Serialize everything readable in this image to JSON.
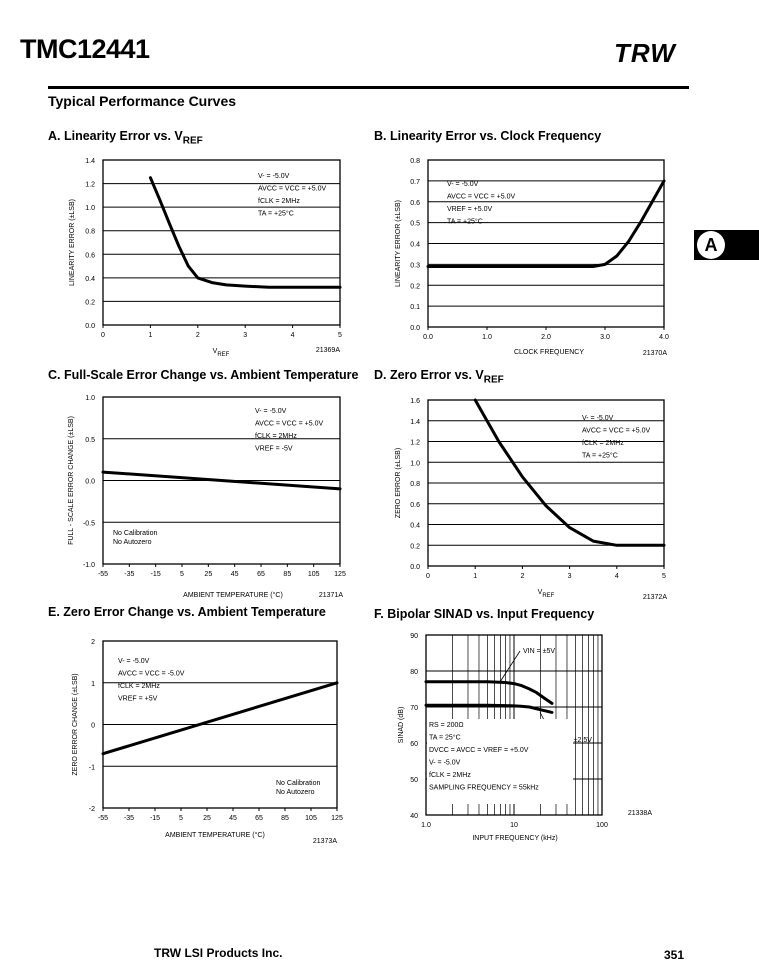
{
  "header": {
    "part_number": "TMC12441",
    "logo": "TRW",
    "section_title": "Typical Performance Curves",
    "tab_letter": "A"
  },
  "footer": {
    "company": "TRW LSI Products Inc.",
    "page_number": "351"
  },
  "chart_titles": [
    "A. Linearity Error vs. V",
    "B. Linearity Error vs. Clock Frequency",
    "C. Full-Scale Error Change vs. Ambient Temperature",
    "D. Zero Error vs. V",
    "E. Zero Error Change vs. Ambient Temperature",
    "F. Bipolar SINAD vs. Input Frequency"
  ],
  "chart_title_subscripts": [
    "REF",
    "",
    "",
    "REF",
    "",
    ""
  ],
  "chart_data": [
    {
      "type": "line",
      "xlim": [
        0,
        5
      ],
      "ylim": [
        0,
        1.4
      ],
      "xticks": [
        "0",
        "1",
        "2",
        "3",
        "4",
        "5"
      ],
      "yticks": [
        "0.0",
        "0.2",
        "0.4",
        "0.6",
        "0.8",
        "1.0",
        "1.2",
        "1.4"
      ],
      "xlabel": "V",
      "xlabel_sub": "REF",
      "ylabel": "LINEARITY ERROR (±LSB)",
      "figure_id": "21369A",
      "conditions": [
        "V- = -5.0V",
        "AVCC = VCC = +5.0V",
        "fCLK = 2MHz",
        "TA = +25°C"
      ],
      "series": [
        {
          "x": [
            1.0,
            1.2,
            1.4,
            1.6,
            1.8,
            2.0,
            2.3,
            2.6,
            3.0,
            3.5,
            4.0,
            5.0
          ],
          "y": [
            1.25,
            1.06,
            0.86,
            0.67,
            0.5,
            0.4,
            0.36,
            0.34,
            0.33,
            0.32,
            0.32,
            0.32
          ]
        }
      ]
    },
    {
      "type": "line",
      "xlim": [
        0,
        4
      ],
      "ylim": [
        0,
        0.8
      ],
      "xticks": [
        "0.0",
        "1.0",
        "2.0",
        "3.0",
        "4.0"
      ],
      "yticks": [
        "0.0",
        "0.1",
        "0.2",
        "0.3",
        "0.4",
        "0.5",
        "0.6",
        "0.7",
        "0.8"
      ],
      "xlabel": "CLOCK FREQUENCY",
      "xlabel_sub": "",
      "ylabel": "LINEARITY ERROR (±LSB)",
      "figure_id": "21370A",
      "conditions": [
        "V- = -5.0V",
        "AVCC = VCC = +5.0V",
        "VREF = +5.0V",
        "TA = +25°C"
      ],
      "series": [
        {
          "x": [
            0,
            1.0,
            2.0,
            2.5,
            2.8,
            3.0,
            3.2,
            3.4,
            3.6,
            3.8,
            4.0
          ],
          "y": [
            0.29,
            0.29,
            0.29,
            0.29,
            0.29,
            0.3,
            0.34,
            0.41,
            0.5,
            0.6,
            0.7
          ]
        }
      ]
    },
    {
      "type": "line",
      "xlim": [
        -55,
        125
      ],
      "ylim": [
        -1.0,
        1.0
      ],
      "xticks": [
        "-55",
        "-35",
        "-15",
        "5",
        "25",
        "45",
        "65",
        "85",
        "105",
        "125"
      ],
      "yticks": [
        "-1.0",
        "-0.5",
        "0.0",
        "0.5",
        "1.0"
      ],
      "xlabel": "AMBIENT TEMPERATURE (°C)",
      "xlabel_sub": "",
      "ylabel": "FULL - SCALE ERROR CHANGE (±LSB)",
      "figure_id": "21371A",
      "conditions": [
        "V- = -5.0V",
        "AVCC = VCC = +5.0V",
        "fCLK = 2MHz",
        "VREF = -5V"
      ],
      "notes": [
        "No Calibration",
        "No Autozero"
      ],
      "series": [
        {
          "x": [
            -55,
            125
          ],
          "y": [
            0.1,
            -0.1
          ]
        }
      ]
    },
    {
      "type": "line",
      "xlim": [
        0,
        5
      ],
      "ylim": [
        0,
        1.6
      ],
      "xticks": [
        "0",
        "1",
        "2",
        "3",
        "4",
        "5"
      ],
      "yticks": [
        "0.0",
        "0.2",
        "0.4",
        "0.6",
        "0.8",
        "1.0",
        "1.2",
        "1.4",
        "1.6"
      ],
      "xlabel": "V",
      "xlabel_sub": "REF",
      "ylabel": "ZERO ERROR (±LSB)",
      "figure_id": "21372A",
      "conditions": [
        "V- = -5.0V",
        "AVCC = VCC = +5.0V",
        "fCLK = 2MHz",
        "TA = +25°C"
      ],
      "series": [
        {
          "x": [
            1.0,
            1.5,
            2.0,
            2.5,
            3.0,
            3.5,
            4.0,
            4.5,
            5.0
          ],
          "y": [
            1.6,
            1.2,
            0.86,
            0.58,
            0.37,
            0.24,
            0.2,
            0.2,
            0.2
          ]
        }
      ]
    },
    {
      "type": "line",
      "xlim": [
        -55,
        125
      ],
      "ylim": [
        -2,
        2
      ],
      "xticks": [
        "-55",
        "-35",
        "-15",
        "5",
        "25",
        "45",
        "65",
        "85",
        "105",
        "125"
      ],
      "yticks": [
        "-2",
        "-1",
        "0",
        "1",
        "2"
      ],
      "xlabel": "AMBIENT TEMPERATURE (°C)",
      "xlabel_sub": "",
      "ylabel": "ZERO ERROR CHANGE (±LSB)",
      "figure_id": "21373A",
      "conditions": [
        "V- = -5.0V",
        "AVCC = VCC = -5.0V",
        "fCLK = 2MHz",
        "VREF = +5V"
      ],
      "notes": [
        "No Calibration",
        "No Autozero"
      ],
      "series": [
        {
          "x": [
            -55,
            125
          ],
          "y": [
            -0.7,
            1.0
          ]
        }
      ]
    },
    {
      "type": "line",
      "xlim": [
        1,
        100
      ],
      "xscale": "log",
      "ylim": [
        40,
        90
      ],
      "xticks": [
        "1.0",
        "10",
        "100"
      ],
      "yticks": [
        "40",
        "50",
        "60",
        "70",
        "80",
        "90"
      ],
      "xlabel": "INPUT FREQUENCY (kHz)",
      "xlabel_sub": "",
      "ylabel": "SINAD (dB)",
      "figure_id": "21338A",
      "conditions": [
        "RS = 200Ω",
        "TA = 25°C",
        "DVCC = AVCC = VREF = +5.0V",
        "V- = -5.0V",
        "fCLK = 2MHz",
        "SAMPLING FREQUENCY = 55kHz"
      ],
      "series": [
        {
          "name": "VIN = ±5V",
          "x": [
            1,
            5,
            8,
            10,
            12,
            15,
            18,
            22,
            27
          ],
          "y": [
            77,
            77,
            76.8,
            76.5,
            76,
            75,
            74,
            72.5,
            71
          ]
        },
        {
          "name": "VIN = ±2.5V",
          "x": [
            1,
            5,
            8,
            10,
            12,
            15,
            18,
            22,
            27
          ],
          "y": [
            70.5,
            70.5,
            70.4,
            70.3,
            70.2,
            70,
            69.5,
            69,
            68.5
          ]
        }
      ]
    }
  ]
}
